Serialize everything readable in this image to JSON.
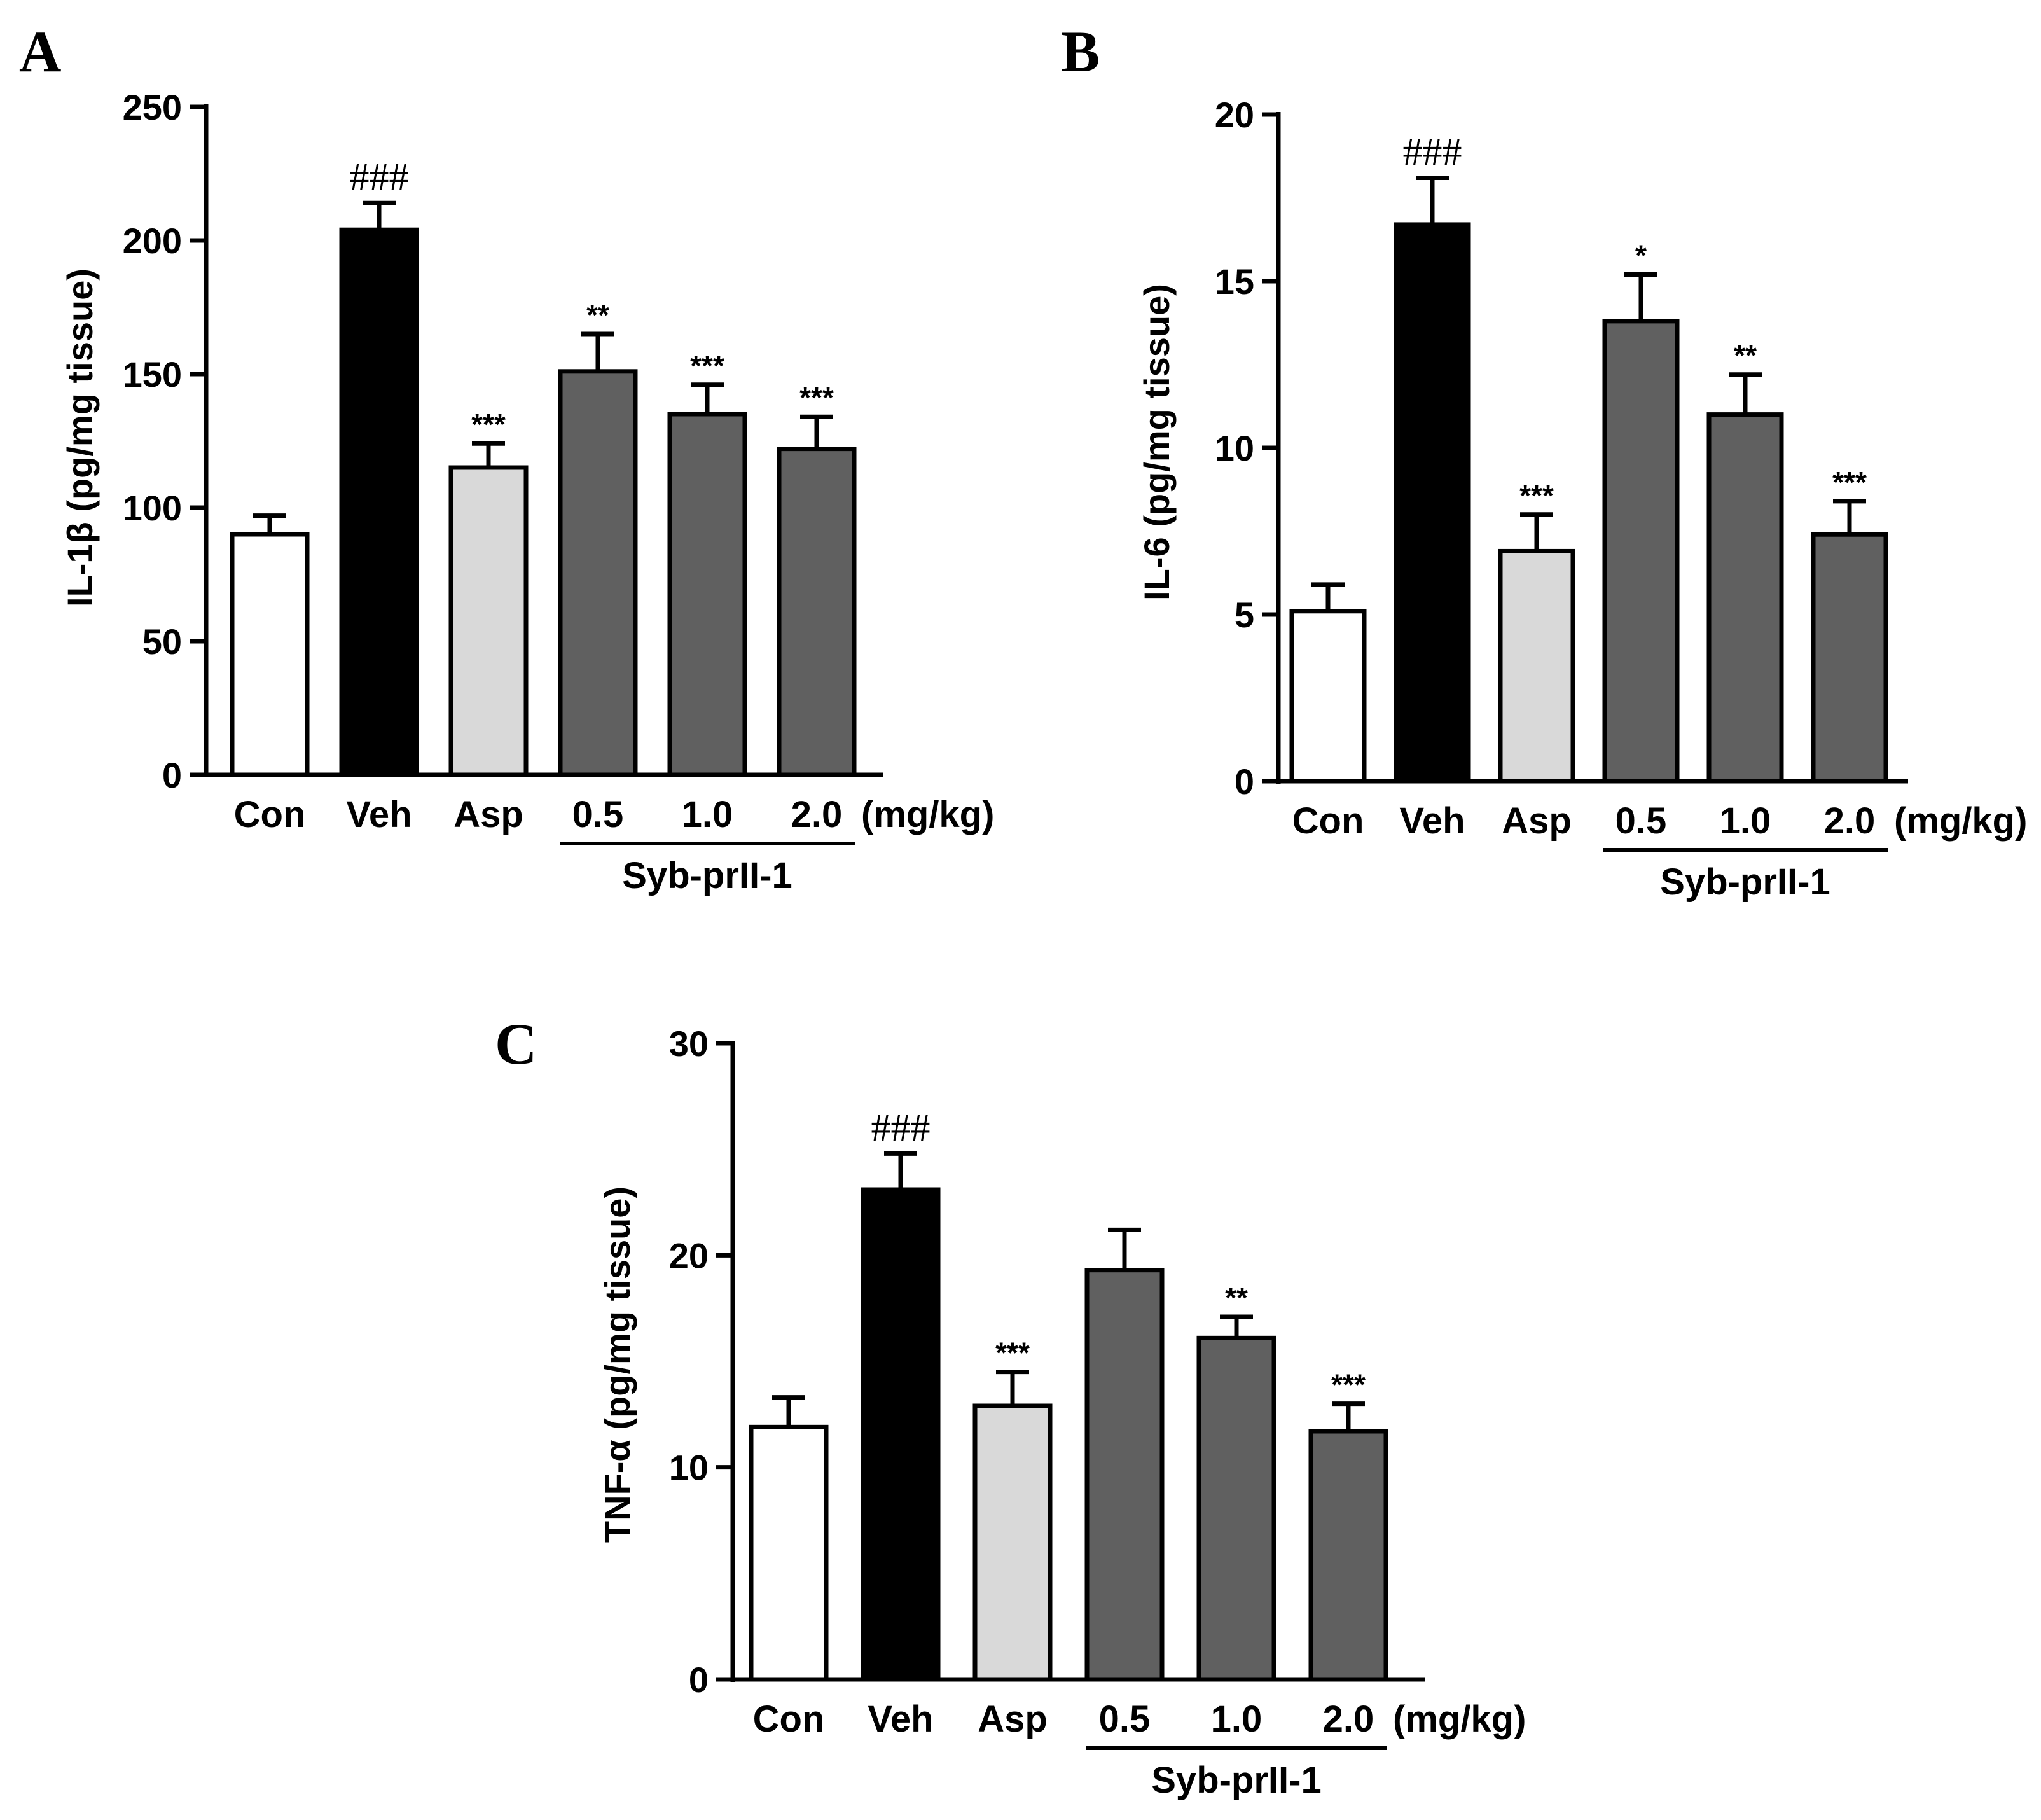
{
  "figure": {
    "bar_colors": [
      "#ffffff",
      "#000000",
      "#d9d9d9",
      "#606060",
      "#606060",
      "#606060"
    ],
    "axis_color": "#000000"
  },
  "chart_data": [
    {
      "panel": "A",
      "type": "bar",
      "ylabel": "IL-1β (pg/mg tissue)",
      "ylim": [
        0,
        250
      ],
      "yticks": [
        0,
        50,
        100,
        150,
        200,
        250
      ],
      "categories": [
        "Con",
        "Veh",
        "Asp",
        "0.5",
        "1.0",
        "2.0"
      ],
      "unit_label": "(mg/kg)",
      "group_label": "Syb-prII-1",
      "values": [
        90,
        204,
        115,
        151,
        135,
        122
      ],
      "errors": [
        7,
        10,
        9,
        14,
        11,
        12
      ],
      "significance": [
        "",
        "###",
        "***",
        "**",
        "***",
        "***"
      ]
    },
    {
      "panel": "B",
      "type": "bar",
      "ylabel": "IL-6 (pg/mg tissue)",
      "ylim": [
        0,
        20
      ],
      "yticks": [
        0,
        5,
        10,
        15,
        20
      ],
      "categories": [
        "Con",
        "Veh",
        "Asp",
        "0.5",
        "1.0",
        "2.0"
      ],
      "unit_label": "(mg/kg)",
      "group_label": "Syb-prII-1",
      "values": [
        5.1,
        16.7,
        6.9,
        13.8,
        11.0,
        7.4
      ],
      "errors": [
        0.8,
        1.4,
        1.1,
        1.4,
        1.2,
        1.0
      ],
      "significance": [
        "",
        "###",
        "***",
        "*",
        "**",
        "***"
      ]
    },
    {
      "panel": "C",
      "type": "bar",
      "ylabel": "TNF-α (pg/mg tissue)",
      "ylim": [
        0,
        30
      ],
      "yticks": [
        0,
        10,
        20,
        30
      ],
      "categories": [
        "Con",
        "Veh",
        "Asp",
        "0.5",
        "1.0",
        "2.0"
      ],
      "unit_label": "(mg/kg)",
      "group_label": "Syb-prII-1",
      "values": [
        11.9,
        23.1,
        12.9,
        19.3,
        16.1,
        11.7
      ],
      "errors": [
        1.4,
        1.7,
        1.6,
        1.9,
        1.0,
        1.3
      ],
      "significance": [
        "",
        "###",
        "***",
        "",
        "**",
        "***"
      ]
    }
  ]
}
